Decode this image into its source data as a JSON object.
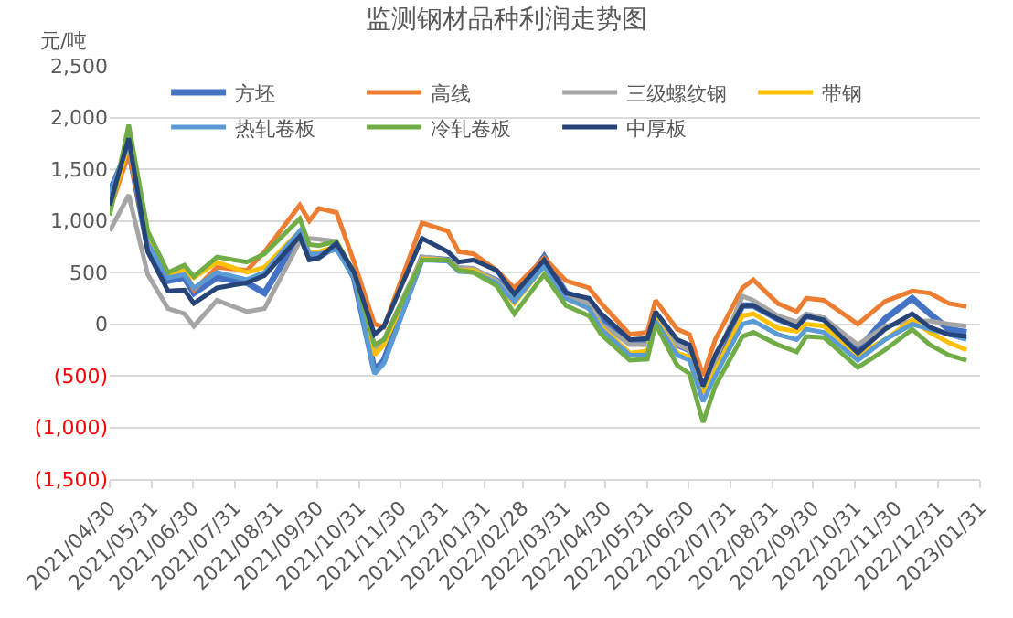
{
  "chart_data": {
    "type": "line",
    "title": "监测钢材品种利润走势图",
    "ylabel": "元/吨",
    "x": [
      "2021-04-30",
      "2021-05-14",
      "2021-05-28",
      "2021-06-12",
      "2021-06-24",
      "2021-07-01",
      "2021-07-18",
      "2021-08-09",
      "2021-08-22",
      "2021-09-17",
      "2021-09-24",
      "2021-10-01",
      "2021-10-14",
      "2021-10-27",
      "2021-11-11",
      "2021-11-18",
      "2021-12-16",
      "2022-01-04",
      "2022-01-12",
      "2022-01-23",
      "2022-02-09",
      "2022-02-22",
      "2022-03-16",
      "2022-04-01",
      "2022-04-18",
      "2022-04-27",
      "2022-05-18",
      "2022-05-31",
      "2022-06-06",
      "2022-06-22",
      "2022-07-01",
      "2022-07-11",
      "2022-07-20",
      "2022-08-09",
      "2022-08-17",
      "2022-09-04",
      "2022-09-18",
      "2022-09-25",
      "2022-10-08",
      "2022-11-02",
      "2022-11-22",
      "2022-12-12",
      "2022-12-25",
      "2023-01-08",
      "2023-01-21"
    ],
    "series": [
      {
        "name": "方坯",
        "color": "#4472c4",
        "values": [
          1280,
          1700,
          750,
          420,
          450,
          300,
          450,
          400,
          300,
          870,
          650,
          650,
          760,
          450,
          -450,
          -350,
          640,
          620,
          530,
          520,
          420,
          250,
          650,
          300,
          220,
          50,
          -180,
          -170,
          100,
          -200,
          -250,
          -650,
          -350,
          180,
          180,
          50,
          -20,
          80,
          50,
          -250,
          50,
          250,
          100,
          -50,
          -80
        ]
      },
      {
        "name": "高线",
        "color": "#ed7d31",
        "values": [
          1100,
          1650,
          800,
          450,
          520,
          330,
          550,
          520,
          700,
          1150,
          1000,
          1120,
          1080,
          600,
          0,
          -30,
          980,
          900,
          700,
          680,
          520,
          350,
          640,
          420,
          350,
          200,
          -100,
          -80,
          230,
          -50,
          -100,
          -500,
          -150,
          350,
          430,
          200,
          120,
          250,
          230,
          0,
          220,
          320,
          300,
          200,
          170
        ]
      },
      {
        "name": "三级螺纹钢",
        "color": "#a5a5a5",
        "values": [
          900,
          1250,
          480,
          150,
          100,
          -20,
          230,
          120,
          150,
          800,
          830,
          820,
          800,
          450,
          -250,
          -150,
          650,
          620,
          550,
          540,
          420,
          230,
          600,
          280,
          200,
          0,
          -200,
          -200,
          80,
          -200,
          -250,
          -700,
          -350,
          270,
          230,
          80,
          20,
          100,
          60,
          -200,
          -20,
          30,
          30,
          0,
          -20
        ]
      },
      {
        "name": "带钢",
        "color": "#ffc000",
        "values": [
          1100,
          1750,
          820,
          470,
          520,
          450,
          600,
          500,
          550,
          900,
          700,
          700,
          750,
          480,
          -300,
          -200,
          630,
          620,
          520,
          520,
          400,
          200,
          560,
          250,
          150,
          -30,
          -280,
          -260,
          50,
          -280,
          -320,
          -700,
          -450,
          80,
          100,
          -40,
          -70,
          0,
          -20,
          -300,
          -150,
          40,
          -80,
          -180,
          -250
        ]
      },
      {
        "name": "热轧卷板",
        "color": "#5b9bd5",
        "values": [
          1250,
          1750,
          780,
          450,
          480,
          350,
          500,
          430,
          500,
          900,
          680,
          680,
          720,
          460,
          -480,
          -380,
          620,
          610,
          510,
          500,
          400,
          220,
          560,
          250,
          150,
          -50,
          -300,
          -300,
          30,
          -300,
          -350,
          -750,
          -500,
          0,
          30,
          -100,
          -150,
          -50,
          -80,
          -350,
          -150,
          0,
          -50,
          -100,
          -150
        ]
      },
      {
        "name": "冷轧卷板",
        "color": "#70ad47",
        "values": [
          1050,
          1930,
          900,
          500,
          570,
          460,
          650,
          600,
          680,
          1020,
          770,
          760,
          800,
          500,
          -200,
          -150,
          620,
          620,
          520,
          500,
          370,
          100,
          480,
          180,
          80,
          -100,
          -350,
          -340,
          0,
          -400,
          -480,
          -950,
          -600,
          -120,
          -80,
          -200,
          -270,
          -120,
          -130,
          -420,
          -250,
          -50,
          -200,
          -300,
          -350
        ]
      },
      {
        "name": "中厚板",
        "color": "#264478",
        "values": [
          1150,
          1800,
          700,
          320,
          330,
          200,
          350,
          400,
          470,
          850,
          620,
          640,
          780,
          500,
          -100,
          -20,
          830,
          700,
          600,
          620,
          520,
          290,
          620,
          300,
          250,
          100,
          -150,
          -140,
          120,
          -150,
          -200,
          -600,
          -300,
          180,
          180,
          50,
          -30,
          80,
          40,
          -280,
          -50,
          100,
          -30,
          -100,
          -120
        ]
      }
    ],
    "xlim": [
      "2021-04-30",
      "2023-01-31"
    ],
    "xticks": [
      {
        "value": "2021-04-30",
        "label": "2021/04/30"
      },
      {
        "value": "2021-05-31",
        "label": "2021/05/31"
      },
      {
        "value": "2021-06-30",
        "label": "2021/06/30"
      },
      {
        "value": "2021-07-31",
        "label": "2021/07/31"
      },
      {
        "value": "2021-08-31",
        "label": "2021/08/31"
      },
      {
        "value": "2021-09-30",
        "label": "2021/09/30"
      },
      {
        "value": "2021-10-31",
        "label": "2021/10/31"
      },
      {
        "value": "2021-11-30",
        "label": "2021/11/30"
      },
      {
        "value": "2021-12-31",
        "label": "2021/12/31"
      },
      {
        "value": "2022-01-31",
        "label": "2022/01/31"
      },
      {
        "value": "2022-02-28",
        "label": "2022/02/28"
      },
      {
        "value": "2022-03-31",
        "label": "2022/03/31"
      },
      {
        "value": "2022-04-30",
        "label": "2022/04/30"
      },
      {
        "value": "2022-05-31",
        "label": "2022/05/31"
      },
      {
        "value": "2022-06-30",
        "label": "2022/06/30"
      },
      {
        "value": "2022-07-31",
        "label": "2022/07/31"
      },
      {
        "value": "2022-08-31",
        "label": "2022/08/31"
      },
      {
        "value": "2022-09-30",
        "label": "2022/09/30"
      },
      {
        "value": "2022-10-31",
        "label": "2022/10/31"
      },
      {
        "value": "2022-11-30",
        "label": "2022/11/30"
      },
      {
        "value": "2022-12-31",
        "label": "2022/12/31"
      },
      {
        "value": "2023-01-31",
        "label": "2023/01/31"
      }
    ],
    "ylim": [
      -1500,
      2500
    ],
    "yticks": [
      {
        "value": -1500,
        "label": "(1,500)"
      },
      {
        "value": -1000,
        "label": "(1,000)"
      },
      {
        "value": -500,
        "label": "(500)"
      },
      {
        "value": 0,
        "label": "0"
      },
      {
        "value": 500,
        "label": "500"
      },
      {
        "value": 1000,
        "label": "1,000"
      },
      {
        "value": 1500,
        "label": "1,500"
      },
      {
        "value": 2000,
        "label": "2,000"
      },
      {
        "value": 2500,
        "label": "2,500"
      }
    ],
    "grid": "y",
    "legend": "top",
    "marker": "none",
    "line_style": "solid"
  }
}
